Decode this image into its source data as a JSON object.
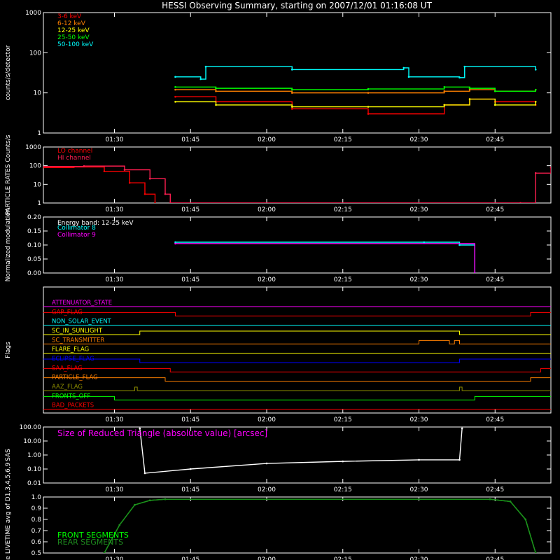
{
  "title": "HESSI Observing Summary, starting on 2007/12/01 01:16:08 UT",
  "colors": {
    "background": "#000000",
    "axes": "#ffffff",
    "red": "#ff0000",
    "orange": "#ff8000",
    "yellow": "#ffff00",
    "green": "#00ff00",
    "cyan": "#00ffff",
    "magenta": "#ff00ff",
    "crimson": "#ff1e50",
    "blue": "#0000ff",
    "olive": "#8c8c00",
    "white": "#ffffff"
  },
  "time_axis": {
    "start": "01:16:08",
    "end": "02:56",
    "ticks": [
      "01:30",
      "01:45",
      "02:00",
      "02:15",
      "02:30",
      "02:45"
    ]
  },
  "chart_data": [
    {
      "type": "line",
      "panel": "count rates",
      "ylabel": "counts/s/detector",
      "yscale": "log",
      "ylim": [
        1,
        1000
      ],
      "yticks": [
        "1",
        "10",
        "100",
        "1000"
      ],
      "legend_position": "top-left",
      "series": [
        {
          "name": "3-6 keV",
          "color": "#ff0000",
          "x": [
            "01:42",
            "01:50",
            "02:05",
            "02:20",
            "02:35",
            "02:40",
            "02:45",
            "02:53"
          ],
          "y": [
            8,
            6,
            4,
            3,
            5,
            7,
            6,
            5
          ]
        },
        {
          "name": "6-12 keV",
          "color": "#ff8000",
          "x": [
            "01:42",
            "01:50",
            "02:05",
            "02:20",
            "02:35",
            "02:40",
            "02:45",
            "02:53"
          ],
          "y": [
            12,
            11,
            10,
            10,
            11,
            12,
            11,
            12
          ]
        },
        {
          "name": "12-25 keV",
          "color": "#ffff00",
          "x": [
            "01:42",
            "01:50",
            "02:05",
            "02:20",
            "02:35",
            "02:40",
            "02:45",
            "02:53"
          ],
          "y": [
            6,
            5,
            4.5,
            4.5,
            5,
            7,
            5,
            6
          ]
        },
        {
          "name": "25-50 keV",
          "color": "#00ff00",
          "x": [
            "01:42",
            "01:50",
            "02:05",
            "02:20",
            "02:35",
            "02:40",
            "02:45",
            "02:53"
          ],
          "y": [
            14,
            13,
            12,
            12.5,
            14,
            13,
            11,
            12
          ]
        },
        {
          "name": "50-100 keV",
          "color": "#00ffff",
          "x": [
            "01:42",
            "01:47",
            "01:48",
            "02:05",
            "02:27",
            "02:28",
            "02:38",
            "02:39",
            "02:53"
          ],
          "y": [
            25,
            22,
            45,
            38,
            42,
            25,
            24,
            45,
            38
          ]
        }
      ]
    },
    {
      "type": "line",
      "panel": "particle rates",
      "ylabel": "PARTICLE RATES Counts/s",
      "yscale": "log",
      "ylim": [
        1,
        1000
      ],
      "yticks": [
        "1",
        "10",
        "100",
        "1000"
      ],
      "legend_position": "top-left",
      "series": [
        {
          "name": "LO channel",
          "color": "#ff0000",
          "x": [
            "01:16",
            "01:22",
            "01:28",
            "01:33",
            "01:36",
            "01:38"
          ],
          "y": [
            80,
            85,
            50,
            12,
            3,
            1
          ]
        },
        {
          "name": "HI channel",
          "color": "#ff1e50",
          "x": [
            "01:16",
            "01:24",
            "01:32",
            "01:37",
            "01:40",
            "01:41",
            "02:50",
            "02:53",
            "02:56"
          ],
          "y": [
            90,
            95,
            60,
            20,
            3,
            1,
            1,
            40,
            80
          ]
        }
      ]
    },
    {
      "type": "line",
      "panel": "normalized modulation",
      "ylabel": "Normalized modulation",
      "ylim": [
        0.0,
        0.2
      ],
      "yticks": [
        "0.00",
        "0.05",
        "0.10",
        "0.15",
        "0.20"
      ],
      "annotation": "Energy band: 12-25 keV",
      "legend_position": "top-left",
      "series": [
        {
          "name": "Collimator 8",
          "color": "#00ffff",
          "x": [
            "01:42",
            "02:31",
            "02:38",
            "02:41"
          ],
          "y": [
            0.11,
            0.11,
            0.1,
            0.0
          ]
        },
        {
          "name": "Collimator 9",
          "color": "#ff00ff",
          "x": [
            "01:42",
            "02:41"
          ],
          "y": [
            0.105,
            0.0
          ]
        }
      ]
    },
    {
      "type": "line",
      "panel": "flags",
      "ylabel": "Flags",
      "flags": [
        {
          "name": "ATTENUATOR_STATE",
          "color": "#ff00ff",
          "changes": [],
          "initial": "low"
        },
        {
          "name": "GAP_FLAG",
          "color": "#ff0000",
          "changes": [
            "01:42",
            "02:52"
          ],
          "initial": "high"
        },
        {
          "name": "NON_SOLAR_EVENT",
          "color": "#00ffff",
          "changes": [],
          "initial": "low"
        },
        {
          "name": "SC_IN_SUNLIGHT",
          "color": "#ffff00",
          "changes": [
            "01:35",
            "02:38"
          ],
          "initial": "low"
        },
        {
          "name": "SC_TRANSMITTER",
          "color": "#ff8000",
          "changes": [
            "02:30",
            "02:36",
            "02:37",
            "02:38"
          ],
          "initial": "low"
        },
        {
          "name": "FLARE_FLAG",
          "color": "#ffff00",
          "changes": [],
          "initial": "low"
        },
        {
          "name": "ECLIPSE_FLAG",
          "color": "#0000ff",
          "changes": [
            "01:35",
            "02:38"
          ],
          "initial": "high"
        },
        {
          "name": "SAA_FLAG",
          "color": "#ff0000",
          "changes": [
            "01:41",
            "02:54"
          ],
          "initial": "high"
        },
        {
          "name": "PARTICLE_FLAG",
          "color": "#ff8000",
          "changes": [
            "01:40",
            "02:52"
          ],
          "initial": "high"
        },
        {
          "name": "AAZ_FLAG",
          "color": "#8c8c00",
          "changes": [
            "01:34",
            "01:34.5",
            "02:38",
            "02:38.5"
          ],
          "initial": "low"
        },
        {
          "name": "FRONTS_OFF",
          "color": "#00ff00",
          "changes": [
            "01:30",
            "02:41"
          ],
          "initial": "high"
        },
        {
          "name": "BAD_PACKETS",
          "color": "#ff0000",
          "changes": [],
          "initial": "low"
        }
      ]
    },
    {
      "type": "line",
      "panel": "SAS",
      "ylabel": "SAS",
      "yscale": "log",
      "ylim": [
        0.01,
        100
      ],
      "yticks": [
        "0.01",
        "0.10",
        "1.00",
        "10.00",
        "100.00"
      ],
      "annotation": "Size of Reduced Triangle (absolute value) [arcsec]",
      "series": [
        {
          "color": "#ffffff",
          "x": [
            "01:35",
            "01:36",
            "01:45",
            "02:00",
            "02:15",
            "02:30",
            "02:38",
            "02:38.5"
          ],
          "y": [
            80,
            0.05,
            0.1,
            0.25,
            0.35,
            0.45,
            0.45,
            80
          ]
        }
      ]
    },
    {
      "type": "line",
      "panel": "livetime",
      "ylabel": "Mon. Rate LIVETIME avg of D1,3,4,5,6,9",
      "ylim": [
        0.5,
        1.0
      ],
      "yticks": [
        "0.5",
        "0.6",
        "0.7",
        "0.8",
        "0.9",
        "1.0"
      ],
      "legend_position": "bottom-left",
      "series": [
        {
          "name": "FRONT SEGMENTS",
          "color": "#00ff00",
          "x": [
            "01:28",
            "01:31",
            "01:34",
            "01:37",
            "01:40",
            "02:44",
            "02:48",
            "02:51",
            "02:53"
          ],
          "y": [
            0.5,
            0.75,
            0.93,
            0.97,
            0.98,
            0.98,
            0.96,
            0.8,
            0.5
          ]
        },
        {
          "name": "REAR SEGMENTS",
          "color": "#1e8c1e",
          "x": [
            "01:28",
            "01:31",
            "01:34",
            "01:37",
            "01:40",
            "02:44",
            "02:48",
            "02:51",
            "02:53"
          ],
          "y": [
            0.5,
            0.75,
            0.93,
            0.97,
            0.98,
            0.98,
            0.96,
            0.8,
            0.5
          ]
        }
      ]
    }
  ]
}
